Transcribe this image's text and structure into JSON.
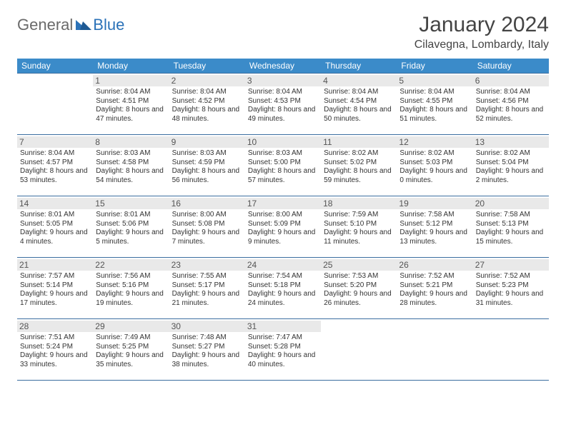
{
  "brand": {
    "part1": "General",
    "part2": "Blue"
  },
  "title": "January 2024",
  "location": "Cilavegna, Lombardy, Italy",
  "colors": {
    "header_bg": "#3b8bc9",
    "row_border": "#3b6ea0",
    "daynum_bg": "#e9e9e9",
    "brand_gray": "#6a6a6a",
    "brand_blue": "#2b72b8"
  },
  "weekdays": [
    "Sunday",
    "Monday",
    "Tuesday",
    "Wednesday",
    "Thursday",
    "Friday",
    "Saturday"
  ],
  "weeks": [
    [
      {
        "n": "",
        "sr": "",
        "ss": "",
        "dl": ""
      },
      {
        "n": "1",
        "sr": "Sunrise: 8:04 AM",
        "ss": "Sunset: 4:51 PM",
        "dl": "Daylight: 8 hours and 47 minutes."
      },
      {
        "n": "2",
        "sr": "Sunrise: 8:04 AM",
        "ss": "Sunset: 4:52 PM",
        "dl": "Daylight: 8 hours and 48 minutes."
      },
      {
        "n": "3",
        "sr": "Sunrise: 8:04 AM",
        "ss": "Sunset: 4:53 PM",
        "dl": "Daylight: 8 hours and 49 minutes."
      },
      {
        "n": "4",
        "sr": "Sunrise: 8:04 AM",
        "ss": "Sunset: 4:54 PM",
        "dl": "Daylight: 8 hours and 50 minutes."
      },
      {
        "n": "5",
        "sr": "Sunrise: 8:04 AM",
        "ss": "Sunset: 4:55 PM",
        "dl": "Daylight: 8 hours and 51 minutes."
      },
      {
        "n": "6",
        "sr": "Sunrise: 8:04 AM",
        "ss": "Sunset: 4:56 PM",
        "dl": "Daylight: 8 hours and 52 minutes."
      }
    ],
    [
      {
        "n": "7",
        "sr": "Sunrise: 8:04 AM",
        "ss": "Sunset: 4:57 PM",
        "dl": "Daylight: 8 hours and 53 minutes."
      },
      {
        "n": "8",
        "sr": "Sunrise: 8:03 AM",
        "ss": "Sunset: 4:58 PM",
        "dl": "Daylight: 8 hours and 54 minutes."
      },
      {
        "n": "9",
        "sr": "Sunrise: 8:03 AM",
        "ss": "Sunset: 4:59 PM",
        "dl": "Daylight: 8 hours and 56 minutes."
      },
      {
        "n": "10",
        "sr": "Sunrise: 8:03 AM",
        "ss": "Sunset: 5:00 PM",
        "dl": "Daylight: 8 hours and 57 minutes."
      },
      {
        "n": "11",
        "sr": "Sunrise: 8:02 AM",
        "ss": "Sunset: 5:02 PM",
        "dl": "Daylight: 8 hours and 59 minutes."
      },
      {
        "n": "12",
        "sr": "Sunrise: 8:02 AM",
        "ss": "Sunset: 5:03 PM",
        "dl": "Daylight: 9 hours and 0 minutes."
      },
      {
        "n": "13",
        "sr": "Sunrise: 8:02 AM",
        "ss": "Sunset: 5:04 PM",
        "dl": "Daylight: 9 hours and 2 minutes."
      }
    ],
    [
      {
        "n": "14",
        "sr": "Sunrise: 8:01 AM",
        "ss": "Sunset: 5:05 PM",
        "dl": "Daylight: 9 hours and 4 minutes."
      },
      {
        "n": "15",
        "sr": "Sunrise: 8:01 AM",
        "ss": "Sunset: 5:06 PM",
        "dl": "Daylight: 9 hours and 5 minutes."
      },
      {
        "n": "16",
        "sr": "Sunrise: 8:00 AM",
        "ss": "Sunset: 5:08 PM",
        "dl": "Daylight: 9 hours and 7 minutes."
      },
      {
        "n": "17",
        "sr": "Sunrise: 8:00 AM",
        "ss": "Sunset: 5:09 PM",
        "dl": "Daylight: 9 hours and 9 minutes."
      },
      {
        "n": "18",
        "sr": "Sunrise: 7:59 AM",
        "ss": "Sunset: 5:10 PM",
        "dl": "Daylight: 9 hours and 11 minutes."
      },
      {
        "n": "19",
        "sr": "Sunrise: 7:58 AM",
        "ss": "Sunset: 5:12 PM",
        "dl": "Daylight: 9 hours and 13 minutes."
      },
      {
        "n": "20",
        "sr": "Sunrise: 7:58 AM",
        "ss": "Sunset: 5:13 PM",
        "dl": "Daylight: 9 hours and 15 minutes."
      }
    ],
    [
      {
        "n": "21",
        "sr": "Sunrise: 7:57 AM",
        "ss": "Sunset: 5:14 PM",
        "dl": "Daylight: 9 hours and 17 minutes."
      },
      {
        "n": "22",
        "sr": "Sunrise: 7:56 AM",
        "ss": "Sunset: 5:16 PM",
        "dl": "Daylight: 9 hours and 19 minutes."
      },
      {
        "n": "23",
        "sr": "Sunrise: 7:55 AM",
        "ss": "Sunset: 5:17 PM",
        "dl": "Daylight: 9 hours and 21 minutes."
      },
      {
        "n": "24",
        "sr": "Sunrise: 7:54 AM",
        "ss": "Sunset: 5:18 PM",
        "dl": "Daylight: 9 hours and 24 minutes."
      },
      {
        "n": "25",
        "sr": "Sunrise: 7:53 AM",
        "ss": "Sunset: 5:20 PM",
        "dl": "Daylight: 9 hours and 26 minutes."
      },
      {
        "n": "26",
        "sr": "Sunrise: 7:52 AM",
        "ss": "Sunset: 5:21 PM",
        "dl": "Daylight: 9 hours and 28 minutes."
      },
      {
        "n": "27",
        "sr": "Sunrise: 7:52 AM",
        "ss": "Sunset: 5:23 PM",
        "dl": "Daylight: 9 hours and 31 minutes."
      }
    ],
    [
      {
        "n": "28",
        "sr": "Sunrise: 7:51 AM",
        "ss": "Sunset: 5:24 PM",
        "dl": "Daylight: 9 hours and 33 minutes."
      },
      {
        "n": "29",
        "sr": "Sunrise: 7:49 AM",
        "ss": "Sunset: 5:25 PM",
        "dl": "Daylight: 9 hours and 35 minutes."
      },
      {
        "n": "30",
        "sr": "Sunrise: 7:48 AM",
        "ss": "Sunset: 5:27 PM",
        "dl": "Daylight: 9 hours and 38 minutes."
      },
      {
        "n": "31",
        "sr": "Sunrise: 7:47 AM",
        "ss": "Sunset: 5:28 PM",
        "dl": "Daylight: 9 hours and 40 minutes."
      },
      {
        "n": "",
        "sr": "",
        "ss": "",
        "dl": ""
      },
      {
        "n": "",
        "sr": "",
        "ss": "",
        "dl": ""
      },
      {
        "n": "",
        "sr": "",
        "ss": "",
        "dl": ""
      }
    ]
  ]
}
